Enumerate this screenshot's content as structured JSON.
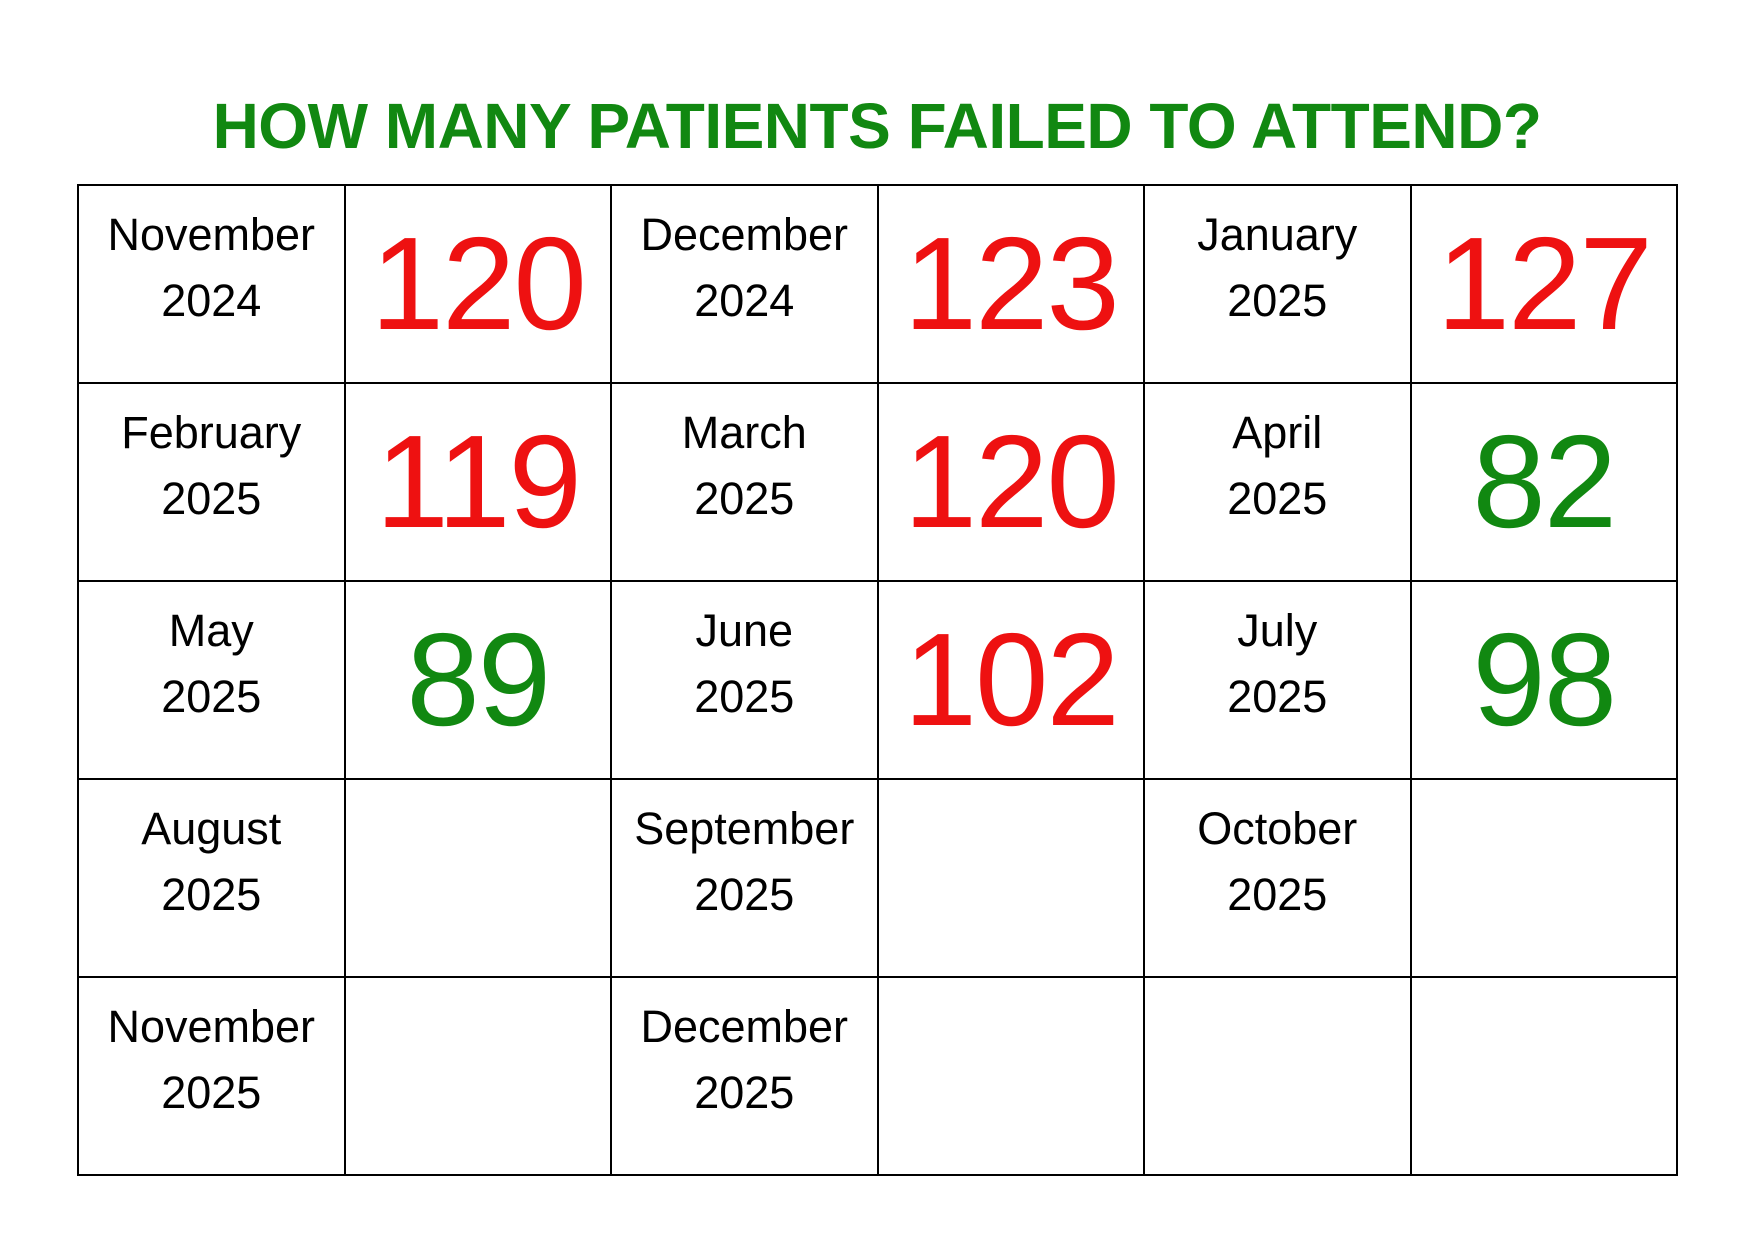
{
  "title": "HOW MANY PATIENTS FAILED TO ATTEND?",
  "colors": {
    "title": "#118811",
    "high": "#ee1111",
    "low": "#118811"
  },
  "rows": [
    [
      {
        "month": "November",
        "year": "2024",
        "value": "120",
        "status": "high"
      },
      {
        "month": "December",
        "year": "2024",
        "value": "123",
        "status": "high"
      },
      {
        "month": "January",
        "year": "2025",
        "value": "127",
        "status": "high"
      }
    ],
    [
      {
        "month": "February",
        "year": "2025",
        "value": "119",
        "status": "high"
      },
      {
        "month": "March",
        "year": "2025",
        "value": "120",
        "status": "high"
      },
      {
        "month": "April",
        "year": "2025",
        "value": "82",
        "status": "low"
      }
    ],
    [
      {
        "month": "May",
        "year": "2025",
        "value": "89",
        "status": "low"
      },
      {
        "month": "June",
        "year": "2025",
        "value": "102",
        "status": "high"
      },
      {
        "month": "July",
        "year": "2025",
        "value": "98",
        "status": "low"
      }
    ],
    [
      {
        "month": "August",
        "year": "2025",
        "value": "",
        "status": ""
      },
      {
        "month": "September",
        "year": "2025",
        "value": "",
        "status": ""
      },
      {
        "month": "October",
        "year": "2025",
        "value": "",
        "status": ""
      }
    ],
    [
      {
        "month": "November",
        "year": "2025",
        "value": "",
        "status": ""
      },
      {
        "month": "December",
        "year": "2025",
        "value": "",
        "status": ""
      },
      {
        "month": "",
        "year": "",
        "value": "",
        "status": ""
      }
    ]
  ]
}
